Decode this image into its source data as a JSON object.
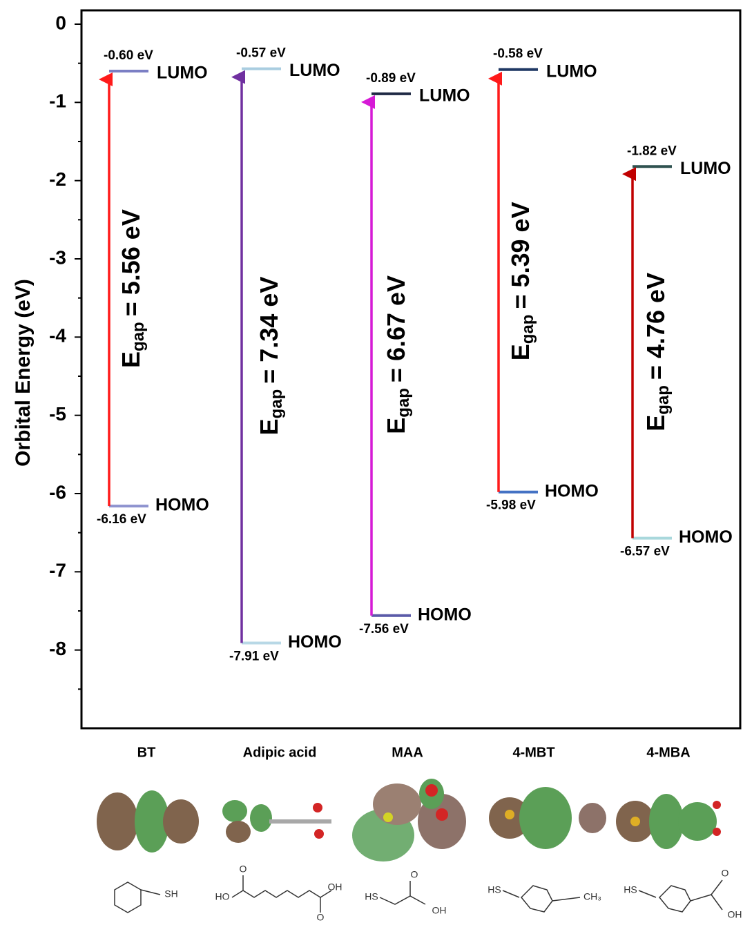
{
  "chart_data": {
    "type": "energy-levels",
    "y_label": "Orbital Energy (eV)",
    "categories": [
      "BT",
      "Adipic acid",
      "MAA",
      "4-MBT",
      "4-MBA"
    ],
    "lumo_label": "LUMO",
    "homo_label": "HOMO",
    "lumo": [
      -0.6,
      -0.57,
      -0.89,
      -0.58,
      -1.82
    ],
    "lumo_value_labels": [
      "-0.60 eV",
      "-0.57 eV",
      "-0.89 eV",
      "-0.58 eV",
      "-1.82 eV"
    ],
    "homo": [
      -6.16,
      -7.91,
      -7.56,
      -5.98,
      -6.57
    ],
    "homo_value_labels": [
      "-6.16 eV",
      "-7.91 eV",
      "-7.56 eV",
      "-5.98 eV",
      "-6.57 eV"
    ],
    "gap_symbol": "E",
    "gap_subscript": "gap",
    "gaps": [
      5.56,
      7.34,
      6.67,
      5.39,
      4.76
    ],
    "gap_labels": [
      "= 5.56 eV",
      "= 7.34 eV",
      "= 6.67 eV",
      "= 5.39 eV",
      "= 4.76 eV"
    ],
    "arrow_colors": [
      "#ff1a1a",
      "#7030a0",
      "#d61ad6",
      "#ff1a1a",
      "#c00000"
    ],
    "lumo_colors": [
      "#7b7fc4",
      "#a9cde0",
      "#1f2a44",
      "#1f3864",
      "#2f5250"
    ],
    "homo_colors": [
      "#8e93cf",
      "#b8d8e6",
      "#5a5aa8",
      "#4472c4",
      "#a9d8dc"
    ],
    "structure_labels": [
      [
        "SH"
      ],
      [
        "HO",
        "O",
        "OH",
        "O"
      ],
      [
        "HS",
        "O",
        "OH"
      ],
      [
        "HS",
        "CH₃"
      ],
      [
        "HS",
        "O",
        "OH"
      ]
    ],
    "ylim": [
      -9,
      0
    ],
    "yticks": [
      0,
      -1,
      -2,
      -3,
      -4,
      -5,
      -6,
      -7,
      -8
    ],
    "minor_yticks": [
      -0.5,
      -1.5,
      -2.5,
      -3.5,
      -4.5,
      -5.5,
      -6.5,
      -7.5,
      -8.5
    ]
  }
}
